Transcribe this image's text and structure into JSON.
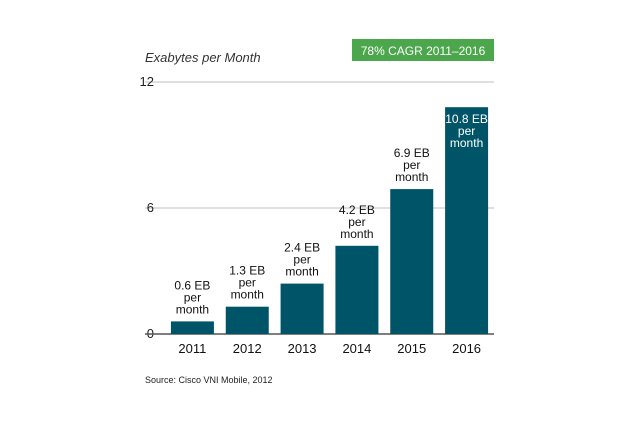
{
  "chart_data": {
    "type": "bar",
    "ylabel": "Exabytes per Month",
    "categories": [
      "2011",
      "2012",
      "2013",
      "2014",
      "2015",
      "2016"
    ],
    "values": [
      0.6,
      1.3,
      2.4,
      4.2,
      6.9,
      10.8
    ],
    "data_labels": [
      [
        "0.6 EB",
        "per",
        "month"
      ],
      [
        "1.3 EB",
        "per",
        "month"
      ],
      [
        "2.4 EB",
        "per",
        "month"
      ],
      [
        "4.2 EB",
        "per",
        "month"
      ],
      [
        "6.9 EB",
        "per",
        "month"
      ],
      [
        "10.8 EB",
        "per",
        "month"
      ]
    ],
    "ylim": [
      0,
      12
    ],
    "yticks": [
      0,
      6,
      12
    ],
    "grid": true,
    "annotation": "78% CAGR 2011–2016",
    "source": "Source: Cisco VNI Mobile, 2012",
    "colors": {
      "bar": "#005468",
      "badge": "#4ca64c",
      "grid": "#bfbfbf",
      "axis": "#555555"
    }
  }
}
